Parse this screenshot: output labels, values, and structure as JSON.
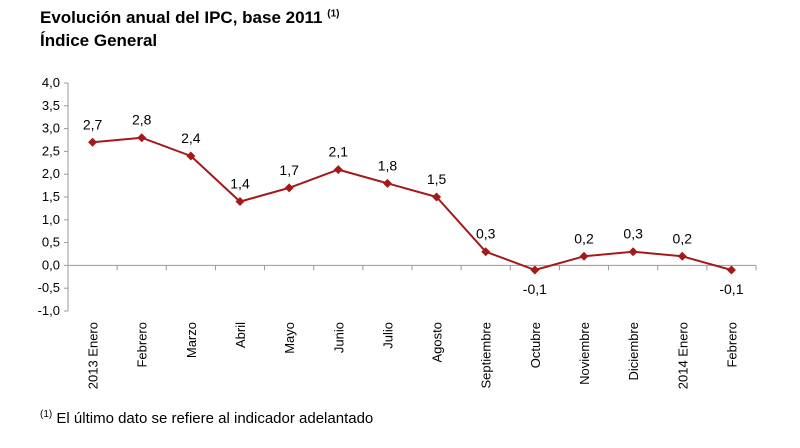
{
  "title_line1": "Evolución anual del IPC, base 2011",
  "title_sup": "(1)",
  "title_line2": "Índice General",
  "footnote_sup": "(1)",
  "footnote_text": "El último dato se refiere al indicador adelantado",
  "colors": {
    "series": "#a31a1a",
    "axis": "#9a9a9a"
  },
  "chart_data": {
    "type": "line",
    "title": "Evolución anual del IPC, base 2011",
    "subtitle": "Índice General",
    "categories": [
      "2013 Enero",
      "Febrero",
      "Marzo",
      "Abril",
      "Mayo",
      "Junio",
      "Julio",
      "Agosto",
      "Septiembre",
      "Octubre",
      "Noviembre",
      "Diciembre",
      "2014 Enero",
      "Febrero"
    ],
    "series": [
      {
        "values": [
          2.7,
          2.8,
          2.4,
          1.4,
          1.7,
          2.1,
          1.8,
          1.5,
          0.3,
          -0.1,
          0.2,
          0.3,
          0.2,
          -0.1
        ]
      }
    ],
    "data_labels": [
      "2,7",
      "2,8",
      "2,4",
      "1,4",
      "1,7",
      "2,1",
      "1,8",
      "1,5",
      "0,3",
      "-0,1",
      "0,2",
      "0,3",
      "0,2",
      "-0,1"
    ],
    "ylim": [
      -1.0,
      4.0
    ],
    "yticks": [
      "-1,0",
      "-0,5",
      "0,0",
      "0,5",
      "1,0",
      "1,5",
      "2,0",
      "2,5",
      "3,0",
      "3,5",
      "4,0"
    ],
    "ytick_values": [
      -1.0,
      -0.5,
      0.0,
      0.5,
      1.0,
      1.5,
      2.0,
      2.5,
      3.0,
      3.5,
      4.0
    ],
    "grid": false,
    "legend": "none",
    "marker": "diamond"
  }
}
